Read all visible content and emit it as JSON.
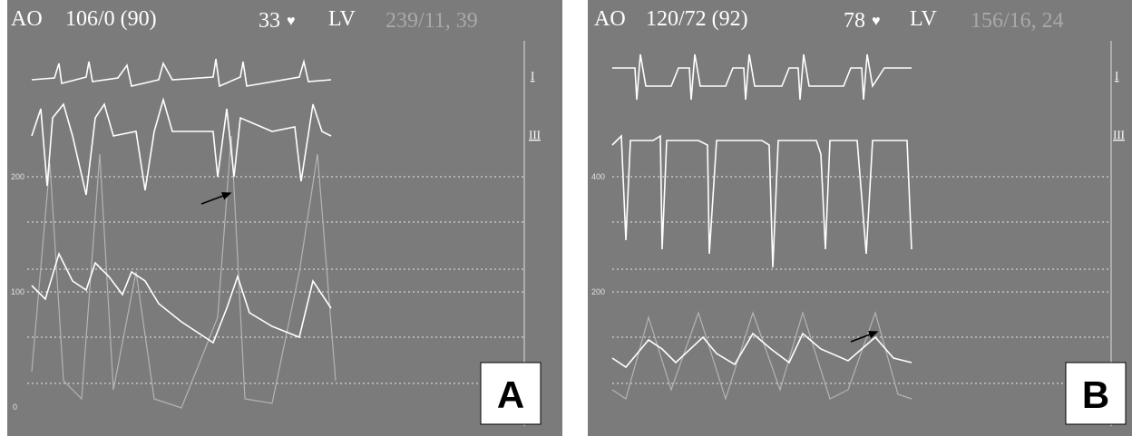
{
  "panels": [
    {
      "label": "A",
      "aortic_label": "AO",
      "aortic_pressure": "106/0 (90)",
      "heart_rate": "33",
      "lv_label": "LV",
      "lv_pressure": "239/11, 39",
      "scale_labels": [
        "200",
        "100",
        "0"
      ],
      "leads": [
        "I",
        "III"
      ]
    },
    {
      "label": "B",
      "aortic_label": "AO",
      "aortic_pressure": "120/72 (92)",
      "heart_rate": "78",
      "lv_label": "LV",
      "lv_pressure": "156/16, 24",
      "scale_labels": [
        "400",
        "200"
      ],
      "leads": [
        "I",
        "III"
      ]
    }
  ]
}
